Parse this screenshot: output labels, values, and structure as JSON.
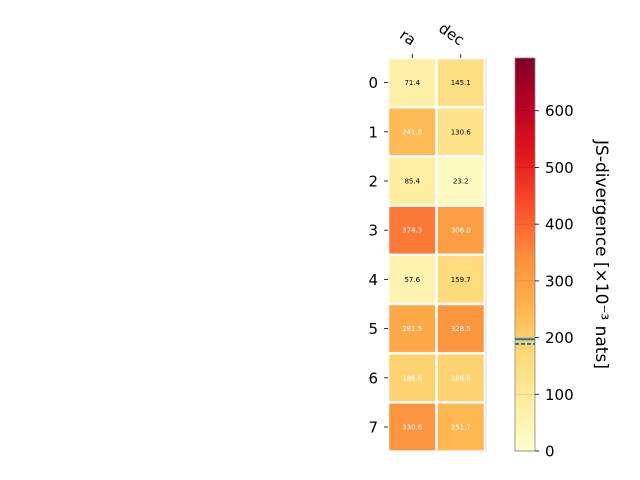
{
  "chart_data": {
    "type": "heatmap",
    "title": "",
    "x_categories": [
      "ra",
      "dec"
    ],
    "y_categories": [
      "0",
      "1",
      "2",
      "3",
      "4",
      "5",
      "6",
      "7"
    ],
    "values": [
      [
        71.4,
        145.1
      ],
      [
        241.8,
        130.6
      ],
      [
        85.4,
        23.2
      ],
      [
        374.3,
        306.0
      ],
      [
        57.6,
        159.7
      ],
      [
        281.5,
        328.5
      ],
      [
        186.6,
        186.6
      ],
      [
        330.6,
        251.7
      ]
    ],
    "cell_labels": [
      [
        "71.4",
        "145.1"
      ],
      [
        "241.8",
        "130.6"
      ],
      [
        "85.4",
        "23.2"
      ],
      [
        "374.3",
        "306.0"
      ],
      [
        "57.6",
        "159.7"
      ],
      [
        "281.5",
        "328.5"
      ],
      [
        "186.6",
        "186.6"
      ],
      [
        "330.6",
        "251.7"
      ]
    ],
    "colorbar": {
      "label": "JS-divergence [×10⁻³ nats]",
      "range": [
        0,
        693
      ],
      "ticks": [
        "0",
        "100",
        "200",
        "300",
        "400",
        "500",
        "600"
      ],
      "tick_values": [
        0,
        100,
        200,
        300,
        400,
        500,
        600
      ],
      "colormap": "YlOrRd",
      "reference_lines": [
        {
          "value": 197,
          "style": "solid",
          "color": "#1f77b4"
        },
        {
          "value": 189,
          "style": "dashed",
          "color": "#1f77b4"
        }
      ]
    },
    "grid": false
  }
}
